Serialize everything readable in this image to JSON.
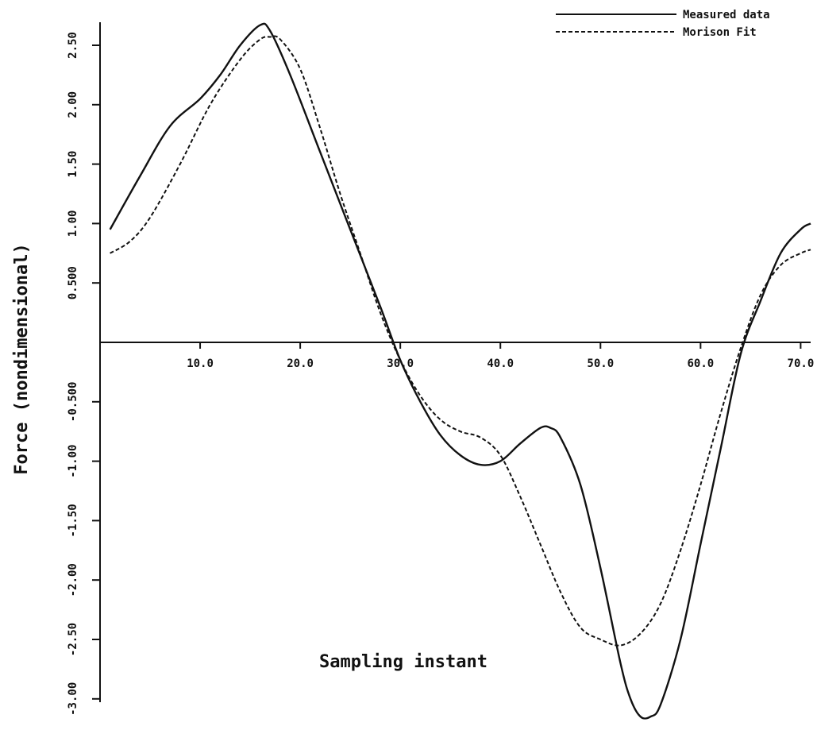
{
  "chart_data": {
    "type": "line",
    "xlabel": "Sampling instant",
    "ylabel": "Force (nondimensional)",
    "xlim": [
      0,
      71
    ],
    "ylim": [
      -3.25,
      2.7
    ],
    "x_ticks": [
      {
        "value": 10,
        "label": "10.0"
      },
      {
        "value": 20,
        "label": "20.0"
      },
      {
        "value": 30,
        "label": "30.0"
      },
      {
        "value": 40,
        "label": "40.0"
      },
      {
        "value": 50,
        "label": "50.0"
      },
      {
        "value": 60,
        "label": "60.0"
      },
      {
        "value": 70,
        "label": "70.0"
      }
    ],
    "y_ticks": [
      {
        "value": 2.5,
        "label": "2.50"
      },
      {
        "value": 2.0,
        "label": "2.00"
      },
      {
        "value": 1.5,
        "label": "1.50"
      },
      {
        "value": 1.0,
        "label": "1.00"
      },
      {
        "value": 0.5,
        "label": "0.500"
      },
      {
        "value": -0.5,
        "label": "-0.500"
      },
      {
        "value": -1.0,
        "label": "-1.00"
      },
      {
        "value": -1.5,
        "label": "-1.50"
      },
      {
        "value": -2.0,
        "label": "-2.00"
      },
      {
        "value": -2.5,
        "label": "-2.50"
      },
      {
        "value": -3.0,
        "label": "-3.00"
      }
    ],
    "legend_position": "top-right",
    "series": [
      {
        "name": "Measured data",
        "style": "solid",
        "x": [
          1,
          4,
          7,
          10,
          12,
          14,
          16,
          17,
          19,
          22,
          25,
          28,
          30,
          32,
          34,
          36,
          38,
          40,
          42,
          44,
          45,
          46,
          48,
          50,
          52,
          53,
          54,
          55,
          56,
          58,
          60,
          62,
          64,
          66,
          68,
          70,
          71
        ],
        "y": [
          0.95,
          1.4,
          1.82,
          2.05,
          2.25,
          2.5,
          2.67,
          2.62,
          2.25,
          1.6,
          0.95,
          0.3,
          -0.15,
          -0.5,
          -0.78,
          -0.95,
          -1.03,
          -1.0,
          -0.85,
          -0.72,
          -0.72,
          -0.8,
          -1.2,
          -1.9,
          -2.7,
          -3.0,
          -3.15,
          -3.15,
          -3.05,
          -2.5,
          -1.7,
          -0.9,
          -0.1,
          0.35,
          0.75,
          0.95,
          1.0
        ]
      },
      {
        "name": "Morison Fit",
        "style": "dashed",
        "x": [
          1,
          3,
          5,
          8,
          11,
          14,
          16,
          17,
          18,
          20,
          22,
          24,
          26,
          28,
          30,
          32,
          34,
          36,
          38,
          40,
          42,
          44,
          46,
          48,
          50,
          52,
          54,
          56,
          58,
          60,
          62,
          64,
          66,
          68,
          70,
          71
        ],
        "y": [
          0.75,
          0.85,
          1.05,
          1.5,
          2.0,
          2.38,
          2.55,
          2.57,
          2.55,
          2.3,
          1.8,
          1.25,
          0.75,
          0.25,
          -0.15,
          -0.45,
          -0.65,
          -0.75,
          -0.8,
          -0.95,
          -1.3,
          -1.7,
          -2.1,
          -2.4,
          -2.5,
          -2.55,
          -2.45,
          -2.2,
          -1.75,
          -1.2,
          -0.6,
          -0.05,
          0.4,
          0.65,
          0.75,
          0.78
        ]
      }
    ]
  }
}
